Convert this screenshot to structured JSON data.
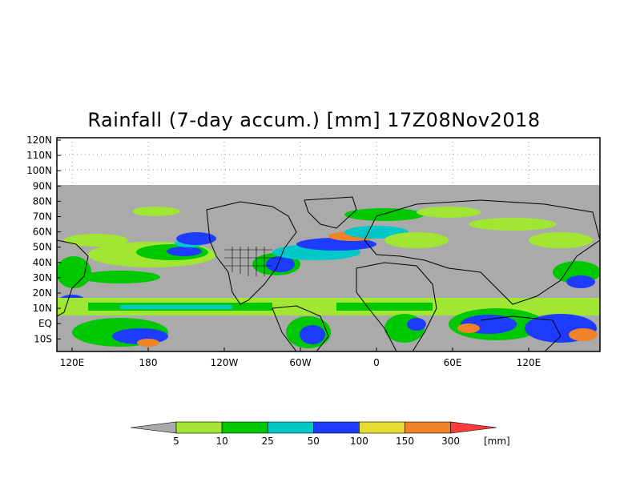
{
  "title": "Rainfall (7-day accum.) [mm] 17Z08Nov2018",
  "map": {
    "lat_labels": [
      "120N",
      "110N",
      "100N",
      "90N",
      "80N",
      "70N",
      "60N",
      "50N",
      "40N",
      "30N",
      "20N",
      "10N",
      "EQ",
      "10S"
    ],
    "lon_labels": [
      "120E",
      "180",
      "120W",
      "60W",
      "0",
      "60E",
      "120E"
    ],
    "land_color": "#aaaaaa",
    "background_color": "#ffffff",
    "coastline_color": "#000000"
  },
  "colorbar": {
    "units": "[mm]",
    "boundaries": [
      "5",
      "10",
      "25",
      "50",
      "100",
      "150",
      "300"
    ],
    "colors": [
      "#aaaaaa",
      "#a0e632",
      "#00c800",
      "#00c8c8",
      "#1e3cff",
      "#e6dc32",
      "#f08228",
      "#fa3c3c"
    ]
  }
}
